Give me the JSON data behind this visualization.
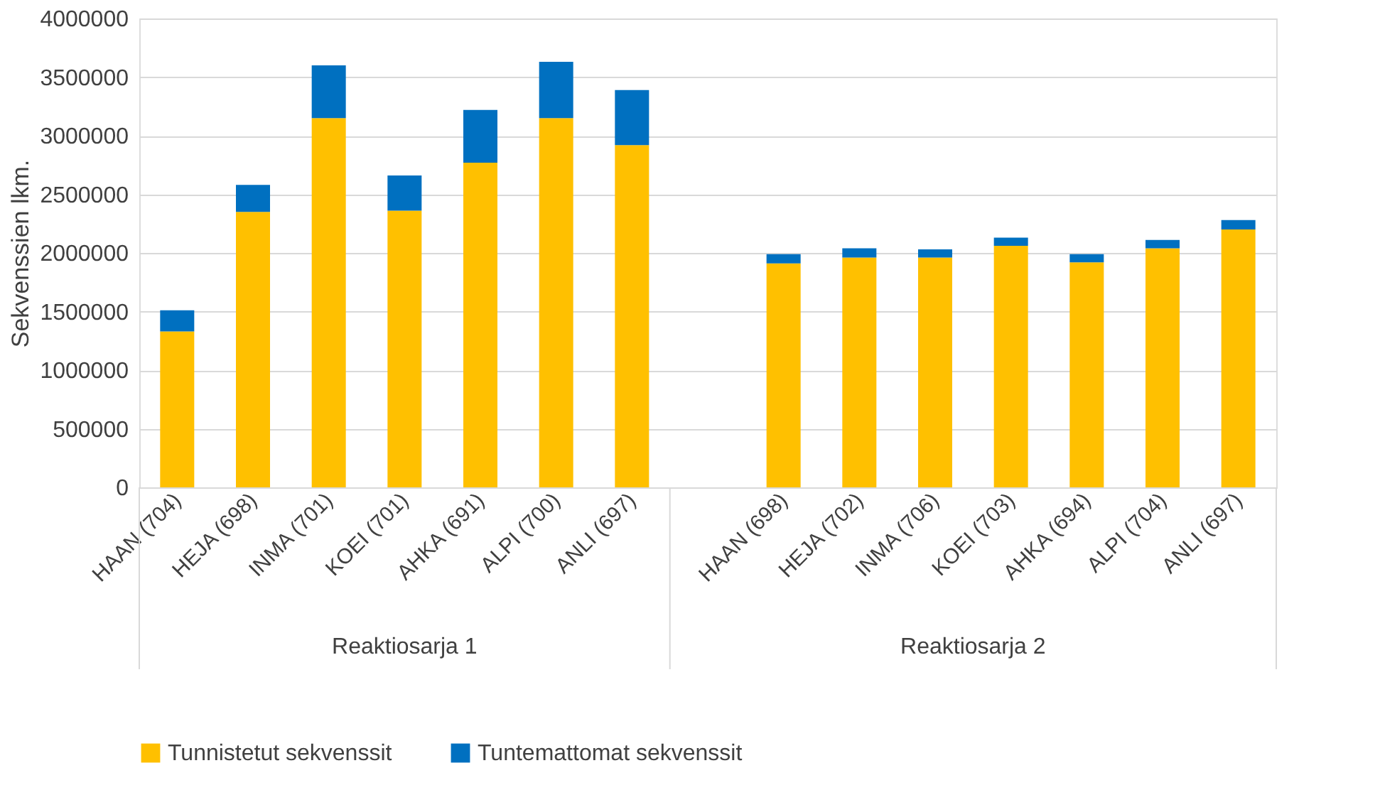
{
  "chart_data": {
    "type": "bar",
    "stacked": true,
    "ylabel": "Sekvenssien lkm.",
    "categories": [
      "HAAN (704)",
      "HEJA (698)",
      "INMA (701)",
      "KOEI (701)",
      "AHKA (691)",
      "ALPI (700)",
      "ANLI (697)",
      null,
      "HAAN (698)",
      "HEJA (702)",
      "INMA (706)",
      "KOEI (703)",
      "AHKA (694)",
      "ALPI (704)",
      "ANLI (697)"
    ],
    "series": [
      {
        "name": "Tunnistetut sekvenssit",
        "color": "#ffc000",
        "values": [
          1330000,
          2350000,
          3150000,
          2360000,
          2770000,
          3150000,
          2920000,
          null,
          1910000,
          1960000,
          1960000,
          2060000,
          1920000,
          2040000,
          2200000
        ]
      },
      {
        "name": "Tuntemattomat sekvenssit",
        "color": "#0070c0",
        "values": [
          180000,
          230000,
          450000,
          300000,
          450000,
          480000,
          470000,
          null,
          80000,
          80000,
          70000,
          70000,
          70000,
          70000,
          80000
        ]
      }
    ],
    "ylim": [
      0,
      4000000
    ],
    "yticks": [
      0,
      500000,
      1000000,
      1500000,
      2000000,
      2500000,
      3000000,
      3500000,
      4000000
    ],
    "grid": "y",
    "legend": "bottom",
    "annotations": [
      "Reaktiosarja 1",
      "Reaktiosarja 2"
    ]
  }
}
